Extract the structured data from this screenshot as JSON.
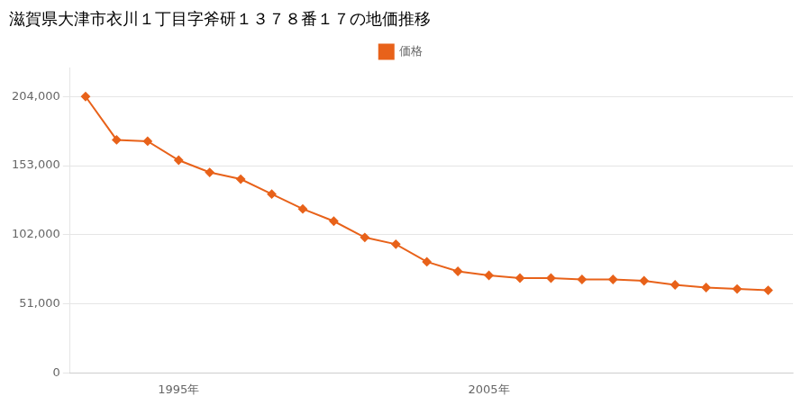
{
  "chart_data": {
    "type": "line",
    "title": "滋賀県大津市衣川１丁目字斧研１３７８番１７の地価推移",
    "x": [
      1992,
      1993,
      1994,
      1995,
      1996,
      1997,
      1998,
      1999,
      2000,
      2001,
      2002,
      2003,
      2004,
      2005,
      2006,
      2007,
      2008,
      2009,
      2010,
      2011,
      2012,
      2013,
      2014
    ],
    "series": [
      {
        "name": "価格",
        "color": "#e8621a",
        "marker": "diamond",
        "line_style": "solid",
        "values": [
          204000,
          172000,
          171000,
          157000,
          148000,
          143000,
          132000,
          121000,
          112000,
          100000,
          95000,
          82000,
          75000,
          72000,
          70000,
          70000,
          69000,
          69000,
          68000,
          65000,
          63000,
          62000,
          61000
        ]
      }
    ],
    "xlim": [
      1991.5,
      2014.8
    ],
    "xticks": [
      {
        "value": 1995,
        "label": "1995年"
      },
      {
        "value": 2005,
        "label": "2005年"
      }
    ],
    "ylim": [
      0,
      225000
    ],
    "yticks": [
      0,
      {
        "value": 51000,
        "label": "51,000"
      },
      {
        "value": 102000,
        "label": "102,000"
      },
      {
        "value": 153000,
        "label": "153,000"
      },
      {
        "value": 204000,
        "label": "204,000"
      }
    ],
    "grid": "y",
    "legend": "top"
  }
}
